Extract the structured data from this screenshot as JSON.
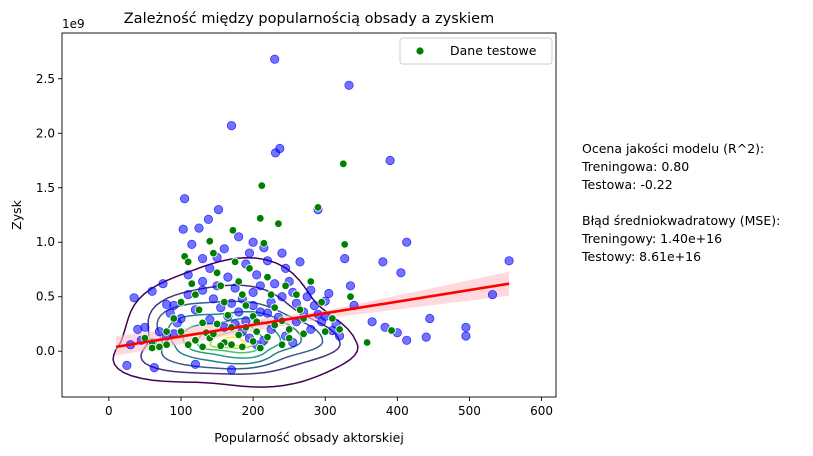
{
  "chart_data": {
    "type": "scatter",
    "title": "Zależność między popularnością obsady a zyskiem",
    "xlabel": "Popularność obsady aktorskiej",
    "ylabel": "Zysk",
    "y_offset_label": "1e9",
    "xlim": [
      -65,
      620
    ],
    "ylim": [
      -420000000.0,
      2920000000.0
    ],
    "x_ticks": [
      0,
      100,
      200,
      300,
      400,
      500,
      600
    ],
    "x_tick_labels": [
      "0",
      "100",
      "200",
      "300",
      "400",
      "500",
      "600"
    ],
    "y_ticks": [
      0,
      500000000,
      1000000000,
      1500000000,
      2000000000,
      2500000000
    ],
    "y_tick_labels": [
      "0.0",
      "0.5",
      "1.0",
      "1.5",
      "2.0",
      "2.5"
    ],
    "grid": false,
    "legend": {
      "placement": "top-right",
      "entries": [
        {
          "label": "Dane testowe",
          "color": "#008000"
        }
      ]
    },
    "colors": {
      "train": "#0000ff",
      "test": "#008000",
      "regression": "#ff0000",
      "ci_band": "#ffc0c8"
    },
    "regression": {
      "x": [
        10,
        555
      ],
      "y": [
        40000000,
        620000000
      ]
    },
    "ci_band": {
      "x": [
        10,
        300,
        555
      ],
      "upper": [
        140000000,
        370000000,
        730000000
      ],
      "lower": [
        -40000000,
        300000000,
        510000000
      ]
    },
    "series": [
      {
        "name": "Dane testowe",
        "points": [
          [
            50,
            120000000
          ],
          [
            60,
            80000000
          ],
          [
            70,
            40000000
          ],
          [
            80,
            180000000
          ],
          [
            90,
            300000000
          ],
          [
            100,
            450000000
          ],
          [
            105,
            870000000
          ],
          [
            110,
            820000000
          ],
          [
            115,
            620000000
          ],
          [
            120,
            520000000
          ],
          [
            125,
            380000000
          ],
          [
            130,
            260000000
          ],
          [
            135,
            170000000
          ],
          [
            140,
            1010000000
          ],
          [
            145,
            900000000
          ],
          [
            150,
            720000000
          ],
          [
            155,
            600000000
          ],
          [
            160,
            450000000
          ],
          [
            165,
            330000000
          ],
          [
            170,
            220000000
          ],
          [
            172,
            1110000000
          ],
          [
            175,
            820000000
          ],
          [
            180,
            640000000
          ],
          [
            185,
            520000000
          ],
          [
            190,
            420000000
          ],
          [
            195,
            760000000
          ],
          [
            200,
            320000000
          ],
          [
            205,
            180000000
          ],
          [
            210,
            1220000000
          ],
          [
            212,
            1520000000
          ],
          [
            215,
            990000000
          ],
          [
            220,
            680000000
          ],
          [
            225,
            520000000
          ],
          [
            230,
            400000000
          ],
          [
            235,
            1170000000
          ],
          [
            240,
            280000000
          ],
          [
            245,
            600000000
          ],
          [
            250,
            200000000
          ],
          [
            260,
            520000000
          ],
          [
            270,
            300000000
          ],
          [
            280,
            640000000
          ],
          [
            290,
            1320000000
          ],
          [
            295,
            450000000
          ],
          [
            300,
            180000000
          ],
          [
            310,
            300000000
          ],
          [
            320,
            200000000
          ],
          [
            325,
            1720000000
          ],
          [
            327,
            980000000
          ],
          [
            335,
            500000000
          ],
          [
            358,
            80000000
          ],
          [
            392,
            190000000
          ],
          [
            120,
            100000000
          ],
          [
            140,
            120000000
          ],
          [
            160,
            80000000
          ],
          [
            180,
            150000000
          ],
          [
            200,
            90000000
          ],
          [
            220,
            130000000
          ],
          [
            240,
            60000000
          ],
          [
            130,
            40000000
          ],
          [
            170,
            60000000
          ],
          [
            210,
            30000000
          ],
          [
            110,
            60000000
          ],
          [
            250,
            120000000
          ],
          [
            150,
            250000000
          ],
          [
            190,
            220000000
          ],
          [
            230,
            240000000
          ],
          [
            270,
            160000000
          ],
          [
            100,
            180000000
          ],
          [
            80,
            60000000
          ],
          [
            60,
            30000000
          ],
          [
            145,
            160000000
          ],
          [
            205,
            270000000
          ],
          [
            265,
            380000000
          ],
          [
            155,
            50000000
          ],
          [
            185,
            40000000
          ]
        ]
      },
      {
        "name": "",
        "points": [
          [
            230,
            2680000000
          ],
          [
            333,
            2440000000
          ],
          [
            170,
            2070000000
          ],
          [
            237,
            1860000000
          ],
          [
            231,
            1820000000
          ],
          [
            390,
            1750000000
          ],
          [
            290,
            1300000000
          ],
          [
            105,
            1400000000
          ],
          [
            138,
            1210000000
          ],
          [
            125,
            1130000000
          ],
          [
            103,
            1120000000
          ],
          [
            152,
            1300000000
          ],
          [
            180,
            1050000000
          ],
          [
            200,
            1000000000
          ],
          [
            413,
            1000000000
          ],
          [
            327,
            850000000
          ],
          [
            380,
            820000000
          ],
          [
            405,
            720000000
          ],
          [
            555,
            830000000
          ],
          [
            532,
            520000000
          ],
          [
            335,
            600000000
          ],
          [
            340,
            420000000
          ],
          [
            365,
            270000000
          ],
          [
            383,
            220000000
          ],
          [
            400,
            170000000
          ],
          [
            445,
            300000000
          ],
          [
            440,
            130000000
          ],
          [
            413,
            100000000
          ],
          [
            495,
            220000000
          ],
          [
            495,
            140000000
          ],
          [
            170,
            -170000000
          ],
          [
            63,
            -150000000
          ],
          [
            25,
            -130000000
          ],
          [
            120,
            -120000000
          ],
          [
            40,
            200000000
          ],
          [
            35,
            490000000
          ],
          [
            60,
            550000000
          ],
          [
            75,
            620000000
          ],
          [
            80,
            430000000
          ],
          [
            85,
            350000000
          ],
          [
            95,
            260000000
          ],
          [
            110,
            700000000
          ],
          [
            115,
            980000000
          ],
          [
            130,
            850000000
          ],
          [
            140,
            760000000
          ],
          [
            150,
            860000000
          ],
          [
            160,
            940000000
          ],
          [
            165,
            680000000
          ],
          [
            175,
            580000000
          ],
          [
            185,
            480000000
          ],
          [
            190,
            800000000
          ],
          [
            195,
            900000000
          ],
          [
            205,
            700000000
          ],
          [
            210,
            600000000
          ],
          [
            215,
            950000000
          ],
          [
            220,
            830000000
          ],
          [
            225,
            450000000
          ],
          [
            240,
            900000000
          ],
          [
            245,
            760000000
          ],
          [
            250,
            640000000
          ],
          [
            255,
            540000000
          ],
          [
            260,
            440000000
          ],
          [
            265,
            820000000
          ],
          [
            270,
            360000000
          ],
          [
            275,
            500000000
          ],
          [
            280,
            560000000
          ],
          [
            285,
            420000000
          ],
          [
            290,
            340000000
          ],
          [
            295,
            270000000
          ],
          [
            300,
            460000000
          ],
          [
            305,
            530000000
          ],
          [
            310,
            190000000
          ],
          [
            315,
            250000000
          ],
          [
            320,
            140000000
          ],
          [
            130,
            560000000
          ],
          [
            145,
            480000000
          ],
          [
            155,
            400000000
          ],
          [
            165,
            320000000
          ],
          [
            175,
            250000000
          ],
          [
            185,
            180000000
          ],
          [
            195,
            120000000
          ],
          [
            205,
            60000000
          ],
          [
            215,
            100000000
          ],
          [
            225,
            200000000
          ],
          [
            235,
            310000000
          ],
          [
            245,
            140000000
          ],
          [
            255,
            80000000
          ],
          [
            120,
            380000000
          ],
          [
            100,
            300000000
          ],
          [
            90,
            160000000
          ],
          [
            70,
            180000000
          ],
          [
            50,
            220000000
          ],
          [
            45,
            100000000
          ],
          [
            30,
            60000000
          ],
          [
            60,
            80000000
          ],
          [
            80,
            140000000
          ],
          [
            140,
            290000000
          ],
          [
            160,
            220000000
          ],
          [
            180,
            360000000
          ],
          [
            200,
            420000000
          ],
          [
            220,
            350000000
          ],
          [
            240,
            500000000
          ],
          [
            260,
            270000000
          ],
          [
            280,
            200000000
          ],
          [
            300,
            320000000
          ],
          [
            170,
            440000000
          ],
          [
            150,
            600000000
          ],
          [
            130,
            640000000
          ],
          [
            110,
            520000000
          ],
          [
            90,
            420000000
          ],
          [
            200,
            540000000
          ],
          [
            230,
            620000000
          ],
          [
            210,
            360000000
          ],
          [
            190,
            280000000
          ]
        ]
      }
    ]
  },
  "side_text": {
    "r2_title": "Ocena jakości modelu (R^2):",
    "r2_train": "Treningowa: 0.80",
    "r2_test": "Testowa: -0.22",
    "mse_title": "Błąd średniokwadratowy (MSE):",
    "mse_train": "Treningowy: 1.40e+16",
    "mse_test": "Testowy: 8.61e+16"
  }
}
